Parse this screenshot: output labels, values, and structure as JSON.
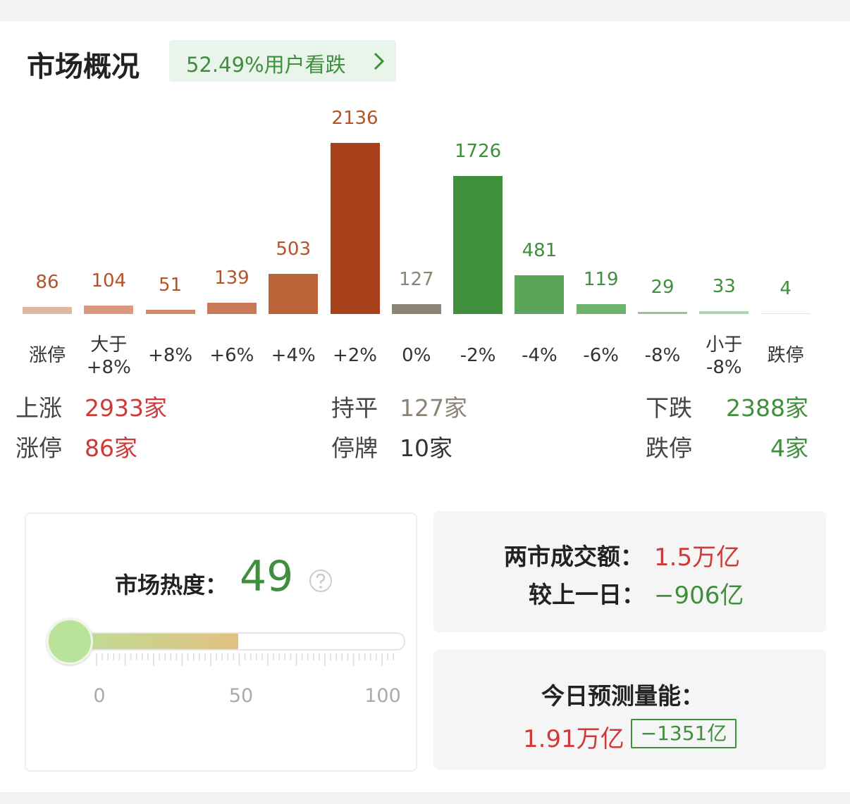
{
  "header": {
    "title": "市场概况",
    "badge": "52.49%用户看跌"
  },
  "chart_data": {
    "type": "bar",
    "categories": [
      "涨停",
      "大于\n+8%",
      "+8%",
      "+6%",
      "+4%",
      "+2%",
      "0%",
      "-2%",
      "-4%",
      "-6%",
      "-8%",
      "小于\n-8%",
      "跌停"
    ],
    "values": [
      86,
      104,
      51,
      139,
      503,
      2136,
      127,
      1726,
      481,
      119,
      29,
      33,
      4
    ],
    "colors": [
      "#dfb7a3",
      "#d99a80",
      "#d08a68",
      "#c77a55",
      "#bc6238",
      "#a8401c",
      "#8b8477",
      "#3f8f3c",
      "#5aa55a",
      "#6db36d",
      "#92c792",
      "#acd5ac",
      "#d8ead8"
    ],
    "label_colors": [
      "#b5532a",
      "#b5532a",
      "#b5532a",
      "#b5532a",
      "#b5532a",
      "#b5532a",
      "#8b8477",
      "#3f8f3c",
      "#3f8f3c",
      "#3f8f3c",
      "#3f8f3c",
      "#3f8f3c",
      "#3f8f3c"
    ]
  },
  "summary": [
    [
      [
        "上涨",
        "2933家"
      ],
      [
        "持平",
        "127家"
      ],
      [
        "下跌",
        "2388家"
      ]
    ],
    [
      [
        "涨停",
        "86家"
      ],
      [
        "停牌",
        "10家"
      ],
      [
        "跌停",
        "4家"
      ]
    ]
  ],
  "heat": {
    "label": "市场热度：",
    "value": 49,
    "ticks": [
      0,
      50,
      100
    ]
  },
  "turnover": {
    "label": "两市成交额：",
    "value": "1.5万亿",
    "change_label": "较上一日：",
    "change": "−906亿"
  },
  "forecast": {
    "label": "今日预测量能：",
    "value": "1.91万亿",
    "change": "−1351亿"
  }
}
